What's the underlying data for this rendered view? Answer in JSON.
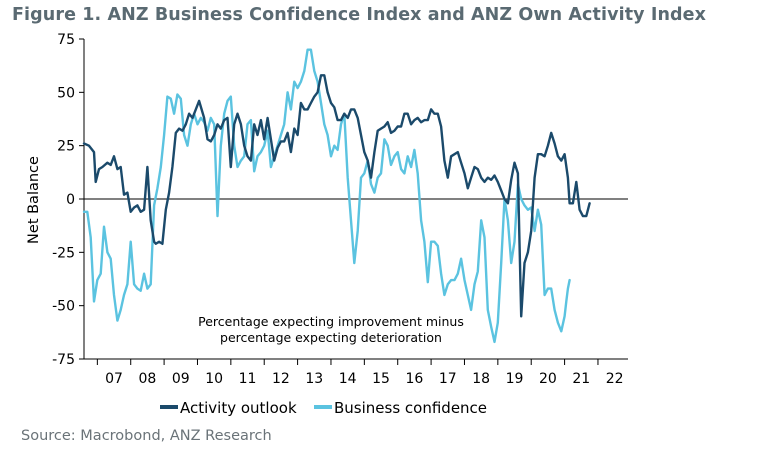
{
  "chart_data": {
    "type": "line",
    "title": "Figure 1.  ANZ Business Confidence Index and ANZ Own Activity Index",
    "ylabel": "Net Balance",
    "xlabel": "",
    "ylim": [
      -75,
      75
    ],
    "yticks": [
      -75,
      -50,
      -25,
      0,
      25,
      50,
      75
    ],
    "xlim": [
      2006.6,
      2022.9
    ],
    "xtick_labels": [
      "07",
      "08",
      "09",
      "10",
      "11",
      "12",
      "13",
      "14",
      "15",
      "16",
      "17",
      "18",
      "19",
      "20",
      "21",
      "22"
    ],
    "grid": false,
    "zero_line": true,
    "legend_position": "bottom",
    "annotation": [
      "Percentage expecting improvement minus",
      "percentage expecting deterioration"
    ],
    "source": "Source: Macrobond, ANZ Research",
    "series": [
      {
        "name": "Activity outlook",
        "color": "#1b4a6b",
        "points": [
          [
            2006.6,
            26
          ],
          [
            2006.75,
            25
          ],
          [
            2006.9,
            22
          ],
          [
            2006.95,
            8
          ],
          [
            2007.05,
            14
          ],
          [
            2007.15,
            15
          ],
          [
            2007.3,
            17
          ],
          [
            2007.4,
            16
          ],
          [
            2007.5,
            20
          ],
          [
            2007.6,
            14
          ],
          [
            2007.7,
            15
          ],
          [
            2007.8,
            2
          ],
          [
            2007.9,
            3
          ],
          [
            2008.0,
            -6
          ],
          [
            2008.1,
            -4
          ],
          [
            2008.2,
            -3
          ],
          [
            2008.3,
            -6
          ],
          [
            2008.4,
            -5
          ],
          [
            2008.5,
            15
          ],
          [
            2008.6,
            -10
          ],
          [
            2008.7,
            -20
          ],
          [
            2008.75,
            -21
          ],
          [
            2008.85,
            -20
          ],
          [
            2008.95,
            -21
          ],
          [
            2009.05,
            -5
          ],
          [
            2009.15,
            3
          ],
          [
            2009.25,
            15
          ],
          [
            2009.35,
            31
          ],
          [
            2009.45,
            33
          ],
          [
            2009.55,
            32
          ],
          [
            2009.65,
            35
          ],
          [
            2009.75,
            40
          ],
          [
            2009.85,
            38
          ],
          [
            2009.95,
            42
          ],
          [
            2010.05,
            46
          ],
          [
            2010.2,
            38
          ],
          [
            2010.3,
            28
          ],
          [
            2010.4,
            27
          ],
          [
            2010.5,
            30
          ],
          [
            2010.6,
            35
          ],
          [
            2010.7,
            33
          ],
          [
            2010.8,
            37
          ],
          [
            2010.9,
            38
          ],
          [
            2011.0,
            15
          ],
          [
            2011.1,
            35
          ],
          [
            2011.2,
            40
          ],
          [
            2011.3,
            35
          ],
          [
            2011.4,
            25
          ],
          [
            2011.5,
            20
          ],
          [
            2011.6,
            18
          ],
          [
            2011.7,
            35
          ],
          [
            2011.8,
            30
          ],
          [
            2011.9,
            37
          ],
          [
            2012.0,
            28
          ],
          [
            2012.1,
            38
          ],
          [
            2012.2,
            28
          ],
          [
            2012.3,
            18
          ],
          [
            2012.4,
            24
          ],
          [
            2012.5,
            27
          ],
          [
            2012.6,
            27
          ],
          [
            2012.7,
            31
          ],
          [
            2012.8,
            22
          ],
          [
            2012.9,
            33
          ],
          [
            2013.0,
            30
          ],
          [
            2013.1,
            45
          ],
          [
            2013.2,
            42
          ],
          [
            2013.3,
            42
          ],
          [
            2013.4,
            45
          ],
          [
            2013.5,
            48
          ],
          [
            2013.6,
            50
          ],
          [
            2013.7,
            58
          ],
          [
            2013.8,
            58
          ],
          [
            2013.9,
            50
          ],
          [
            2014.0,
            45
          ],
          [
            2014.1,
            43
          ],
          [
            2014.2,
            37
          ],
          [
            2014.3,
            37
          ],
          [
            2014.4,
            40
          ],
          [
            2014.5,
            38
          ],
          [
            2014.6,
            42
          ],
          [
            2014.7,
            42
          ],
          [
            2014.8,
            38
          ],
          [
            2014.9,
            30
          ],
          [
            2015.0,
            22
          ],
          [
            2015.1,
            18
          ],
          [
            2015.2,
            10
          ],
          [
            2015.3,
            22
          ],
          [
            2015.4,
            32
          ],
          [
            2015.5,
            33
          ],
          [
            2015.6,
            34
          ],
          [
            2015.7,
            36
          ],
          [
            2015.8,
            31
          ],
          [
            2015.9,
            32
          ],
          [
            2016.0,
            34
          ],
          [
            2016.1,
            34
          ],
          [
            2016.2,
            40
          ],
          [
            2016.3,
            40
          ],
          [
            2016.4,
            35
          ],
          [
            2016.5,
            37
          ],
          [
            2016.6,
            38
          ],
          [
            2016.7,
            36
          ],
          [
            2016.8,
            37
          ],
          [
            2016.9,
            37
          ],
          [
            2017.0,
            42
          ],
          [
            2017.1,
            40
          ],
          [
            2017.2,
            40
          ],
          [
            2017.3,
            34
          ],
          [
            2017.4,
            18
          ],
          [
            2017.5,
            10
          ],
          [
            2017.6,
            20
          ],
          [
            2017.7,
            21
          ],
          [
            2017.8,
            22
          ],
          [
            2017.9,
            17
          ],
          [
            2018.0,
            12
          ],
          [
            2018.1,
            5
          ],
          [
            2018.2,
            10
          ],
          [
            2018.3,
            15
          ],
          [
            2018.4,
            14
          ],
          [
            2018.5,
            10
          ],
          [
            2018.6,
            8
          ],
          [
            2018.7,
            10
          ],
          [
            2018.8,
            9
          ],
          [
            2018.9,
            11
          ],
          [
            2019.0,
            8
          ],
          [
            2019.1,
            4
          ],
          [
            2019.2,
            0
          ],
          [
            2019.3,
            -2
          ],
          [
            2019.4,
            9
          ],
          [
            2019.5,
            17
          ],
          [
            2019.6,
            12
          ],
          [
            2019.7,
            -55
          ],
          [
            2019.8,
            -30
          ],
          [
            2019.9,
            -25
          ],
          [
            2020.0,
            -15
          ],
          [
            2020.1,
            10
          ],
          [
            2020.2,
            21
          ],
          [
            2020.3,
            21
          ],
          [
            2020.4,
            20
          ],
          [
            2020.5,
            25
          ],
          [
            2020.6,
            31
          ],
          [
            2020.7,
            26
          ],
          [
            2020.8,
            20
          ],
          [
            2020.9,
            18
          ],
          [
            2021.0,
            21
          ],
          [
            2021.1,
            10
          ],
          [
            2021.15,
            -2
          ],
          [
            2021.25,
            -2
          ],
          [
            2021.35,
            8
          ],
          [
            2021.45,
            -5
          ],
          [
            2021.55,
            -8
          ],
          [
            2021.65,
            -8
          ],
          [
            2021.75,
            -2
          ]
        ]
      },
      {
        "name": "Business confidence",
        "color": "#5bc3e0",
        "points": [
          [
            2006.6,
            -6
          ],
          [
            2006.7,
            -6
          ],
          [
            2006.8,
            -18
          ],
          [
            2006.9,
            -48
          ],
          [
            2007.0,
            -38
          ],
          [
            2007.1,
            -35
          ],
          [
            2007.2,
            -13
          ],
          [
            2007.3,
            -25
          ],
          [
            2007.4,
            -28
          ],
          [
            2007.5,
            -45
          ],
          [
            2007.6,
            -57
          ],
          [
            2007.7,
            -52
          ],
          [
            2007.8,
            -45
          ],
          [
            2007.9,
            -40
          ],
          [
            2008.0,
            -20
          ],
          [
            2008.1,
            -40
          ],
          [
            2008.2,
            -42
          ],
          [
            2008.3,
            -43
          ],
          [
            2008.4,
            -35
          ],
          [
            2008.5,
            -42
          ],
          [
            2008.6,
            -40
          ],
          [
            2008.7,
            -3
          ],
          [
            2008.8,
            5
          ],
          [
            2008.9,
            15
          ],
          [
            2009.0,
            30
          ],
          [
            2009.1,
            48
          ],
          [
            2009.2,
            47
          ],
          [
            2009.3,
            40
          ],
          [
            2009.4,
            49
          ],
          [
            2009.5,
            47
          ],
          [
            2009.6,
            30
          ],
          [
            2009.7,
            25
          ],
          [
            2009.8,
            35
          ],
          [
            2009.9,
            40
          ],
          [
            2010.0,
            35
          ],
          [
            2010.1,
            38
          ],
          [
            2010.2,
            36
          ],
          [
            2010.3,
            32
          ],
          [
            2010.4,
            38
          ],
          [
            2010.5,
            35
          ],
          [
            2010.6,
            -8
          ],
          [
            2010.7,
            25
          ],
          [
            2010.8,
            40
          ],
          [
            2010.9,
            46
          ],
          [
            2011.0,
            48
          ],
          [
            2011.1,
            25
          ],
          [
            2011.2,
            15
          ],
          [
            2011.3,
            18
          ],
          [
            2011.4,
            20
          ],
          [
            2011.5,
            35
          ],
          [
            2011.6,
            37
          ],
          [
            2011.7,
            13
          ],
          [
            2011.8,
            20
          ],
          [
            2011.9,
            22
          ],
          [
            2012.0,
            25
          ],
          [
            2012.1,
            32
          ],
          [
            2012.2,
            15
          ],
          [
            2012.3,
            20
          ],
          [
            2012.4,
            25
          ],
          [
            2012.5,
            30
          ],
          [
            2012.6,
            35
          ],
          [
            2012.7,
            50
          ],
          [
            2012.8,
            42
          ],
          [
            2012.9,
            55
          ],
          [
            2013.0,
            52
          ],
          [
            2013.1,
            55
          ],
          [
            2013.2,
            60
          ],
          [
            2013.3,
            70
          ],
          [
            2013.4,
            70
          ],
          [
            2013.5,
            60
          ],
          [
            2013.6,
            55
          ],
          [
            2013.7,
            45
          ],
          [
            2013.8,
            35
          ],
          [
            2013.9,
            30
          ],
          [
            2014.0,
            20
          ],
          [
            2014.1,
            25
          ],
          [
            2014.2,
            23
          ],
          [
            2014.3,
            35
          ],
          [
            2014.4,
            40
          ],
          [
            2014.5,
            10
          ],
          [
            2014.6,
            -10
          ],
          [
            2014.7,
            -30
          ],
          [
            2014.8,
            -15
          ],
          [
            2014.9,
            10
          ],
          [
            2015.0,
            12
          ],
          [
            2015.1,
            18
          ],
          [
            2015.2,
            7
          ],
          [
            2015.3,
            3
          ],
          [
            2015.4,
            10
          ],
          [
            2015.5,
            12
          ],
          [
            2015.6,
            28
          ],
          [
            2015.7,
            25
          ],
          [
            2015.8,
            16
          ],
          [
            2015.9,
            20
          ],
          [
            2016.0,
            22
          ],
          [
            2016.1,
            14
          ],
          [
            2016.2,
            12
          ],
          [
            2016.3,
            20
          ],
          [
            2016.4,
            15
          ],
          [
            2016.5,
            23
          ],
          [
            2016.6,
            12
          ],
          [
            2016.7,
            -10
          ],
          [
            2016.8,
            -20
          ],
          [
            2016.9,
            -39
          ],
          [
            2017.0,
            -20
          ],
          [
            2017.1,
            -20
          ],
          [
            2017.2,
            -22
          ],
          [
            2017.3,
            -35
          ],
          [
            2017.4,
            -45
          ],
          [
            2017.5,
            -40
          ],
          [
            2017.6,
            -38
          ],
          [
            2017.7,
            -38
          ],
          [
            2017.8,
            -35
          ],
          [
            2017.9,
            -28
          ],
          [
            2018.0,
            -38
          ],
          [
            2018.1,
            -45
          ],
          [
            2018.2,
            -52
          ],
          [
            2018.3,
            -40
          ],
          [
            2018.4,
            -34
          ],
          [
            2018.5,
            -10
          ],
          [
            2018.6,
            -18
          ],
          [
            2018.7,
            -52
          ],
          [
            2018.8,
            -60
          ],
          [
            2018.9,
            -67
          ],
          [
            2019.0,
            -58
          ],
          [
            2019.1,
            -30
          ],
          [
            2019.2,
            0
          ],
          [
            2019.3,
            -10
          ],
          [
            2019.4,
            -30
          ],
          [
            2019.5,
            -20
          ],
          [
            2019.6,
            7
          ],
          [
            2019.7,
            0
          ],
          [
            2019.8,
            -3
          ],
          [
            2019.9,
            -5
          ],
          [
            2020.0,
            -4
          ],
          [
            2020.1,
            -15
          ],
          [
            2020.2,
            -5
          ],
          [
            2020.3,
            -12
          ],
          [
            2020.4,
            -45
          ],
          [
            2020.5,
            -42
          ],
          [
            2020.6,
            -42
          ],
          [
            2020.7,
            -52
          ],
          [
            2020.8,
            -58
          ],
          [
            2020.9,
            -62
          ],
          [
            2021.0,
            -55
          ],
          [
            2021.05,
            -48
          ],
          [
            2021.1,
            -42
          ],
          [
            2021.15,
            -38
          ]
        ]
      }
    ]
  }
}
